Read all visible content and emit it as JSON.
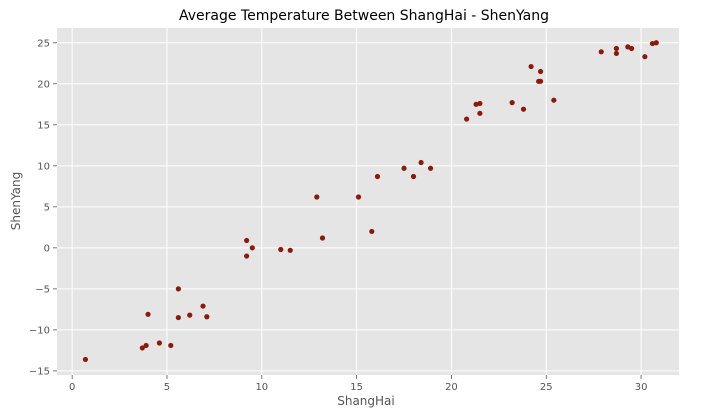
{
  "chart_data": {
    "type": "scatter",
    "title": "Average Temperature Between ShangHai - ShenYang",
    "xlabel": "ShangHai",
    "ylabel": "ShenYang",
    "xlim": [
      -0.8,
      32.0
    ],
    "ylim": [
      -15.5,
      26.8
    ],
    "xticks": [
      0,
      5,
      10,
      15,
      20,
      25,
      30
    ],
    "yticks": [
      -15,
      -10,
      -5,
      0,
      5,
      10,
      15,
      20,
      25
    ],
    "xtick_labels": [
      "0",
      "5",
      "10",
      "15",
      "20",
      "25",
      "30"
    ],
    "ytick_labels": [
      "−15",
      "−10",
      "−5",
      "0",
      "5",
      "10",
      "15",
      "20",
      "25"
    ],
    "grid": true,
    "style": {
      "background": "#e5e5e5",
      "grid_color": "#ffffff",
      "point_color": "#8b1a0a"
    },
    "series": [
      {
        "x": [
          0.7,
          3.7,
          3.9,
          4.0,
          4.6,
          5.2,
          5.6,
          5.6,
          6.2,
          6.9,
          7.1,
          9.2,
          9.2,
          9.5,
          11.0,
          11.5,
          12.9,
          13.2,
          15.1,
          15.8,
          16.1,
          17.5,
          18.0,
          18.4,
          18.9,
          20.8,
          21.3,
          21.5,
          21.5,
          23.2,
          23.8,
          24.2,
          24.6,
          24.7,
          24.7,
          25.4,
          27.9,
          28.7,
          28.7,
          29.3,
          29.5,
          30.2,
          30.6,
          30.8
        ],
        "y": [
          -13.6,
          -12.2,
          -11.9,
          -8.1,
          -11.6,
          -11.9,
          -5.0,
          -8.5,
          -8.2,
          -7.1,
          -8.4,
          0.9,
          -1.0,
          0.0,
          -0.2,
          -0.3,
          6.2,
          1.2,
          6.2,
          2.0,
          8.7,
          9.7,
          8.7,
          10.4,
          9.7,
          15.7,
          17.5,
          17.6,
          16.4,
          17.7,
          16.9,
          22.1,
          20.3,
          21.5,
          20.3,
          18.0,
          23.9,
          24.3,
          23.7,
          24.5,
          24.3,
          23.3,
          24.9,
          25.0
        ]
      }
    ]
  }
}
